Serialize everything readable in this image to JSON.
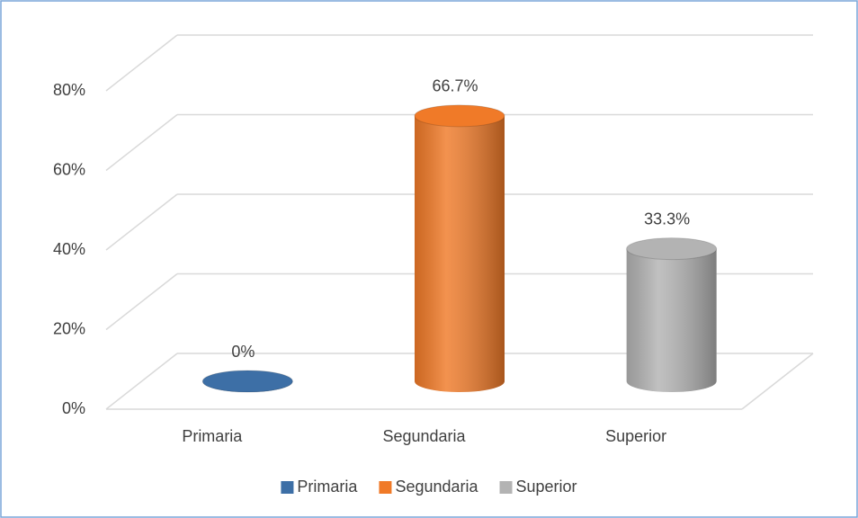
{
  "chart_data": {
    "type": "cylinder",
    "categories": [
      "Primaria",
      "Segundaria",
      "Superior"
    ],
    "values": [
      0,
      66.7,
      33.3
    ],
    "value_labels": [
      "0%",
      "66.7%",
      "33.3%"
    ],
    "colors": [
      "#3d6fa6",
      "#f07a28",
      "#b3b3b3"
    ],
    "ylim": [
      0,
      80
    ],
    "yticks": [
      {
        "value": 0,
        "label": "0%"
      },
      {
        "value": 20,
        "label": "20%"
      },
      {
        "value": 40,
        "label": "40%"
      },
      {
        "value": 60,
        "label": "60%"
      },
      {
        "value": 80,
        "label": "80%"
      }
    ],
    "grid": true,
    "legend": "bottom"
  }
}
